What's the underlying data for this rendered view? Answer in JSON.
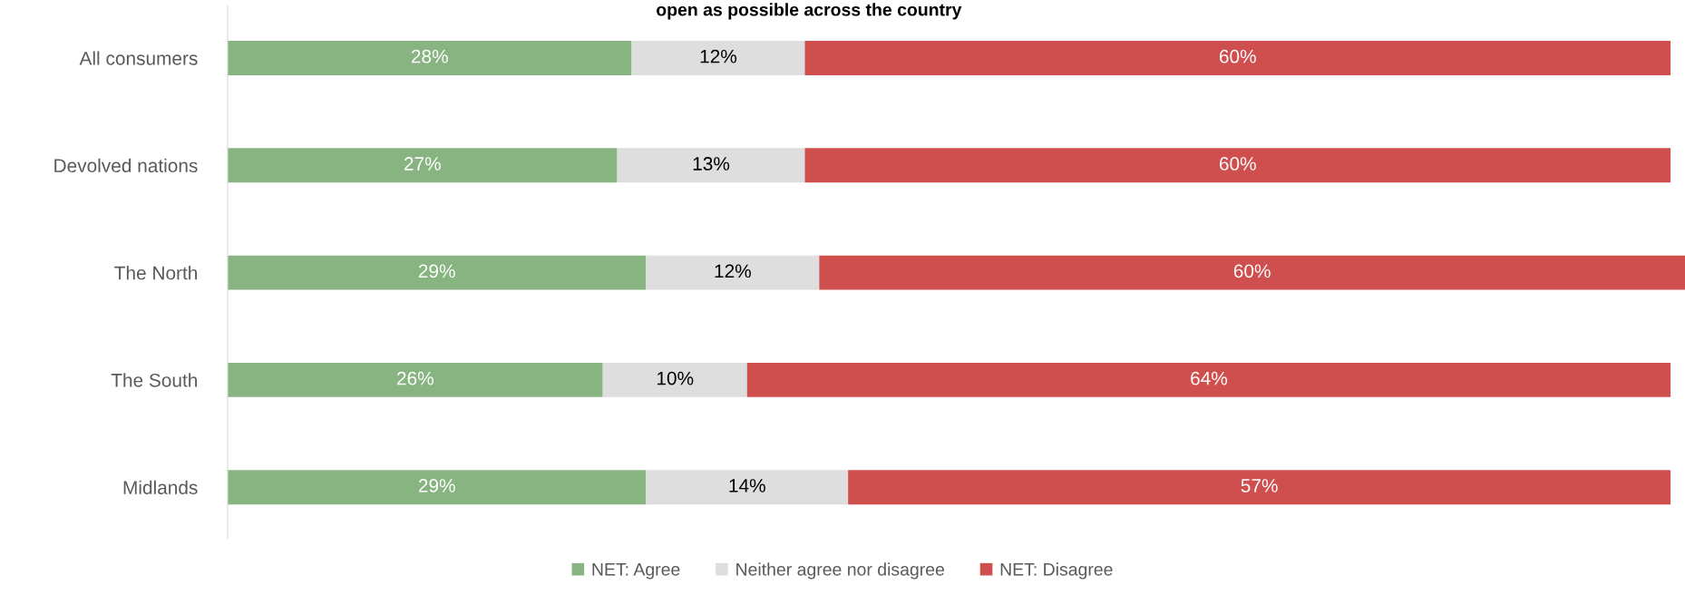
{
  "chart_data": {
    "type": "bar",
    "orientation": "horizontal",
    "stacked": true,
    "title": "open as possible across the country",
    "categories": [
      "All consumers",
      "Devolved nations",
      "The North",
      "The South",
      "Midlands"
    ],
    "series": [
      {
        "name": "NET: Agree",
        "color": "#88b482",
        "values": [
          28,
          27,
          29,
          26,
          29
        ],
        "value_labels": [
          "28%",
          "27%",
          "29%",
          "26%",
          "29%"
        ]
      },
      {
        "name": "Neither agree nor disagree",
        "color": "#dedede",
        "values": [
          12,
          13,
          12,
          10,
          14
        ],
        "value_labels": [
          "12%",
          "13%",
          "12%",
          "10%",
          "14%"
        ]
      },
      {
        "name": "NET: Disagree",
        "color": "#cf4f4e",
        "values": [
          60,
          60,
          60,
          64,
          57
        ],
        "value_labels": [
          "60%",
          "60%",
          "60%",
          "64%",
          "57%"
        ]
      }
    ],
    "legend": "bottom",
    "tick_labels": "y",
    "grid": false
  }
}
